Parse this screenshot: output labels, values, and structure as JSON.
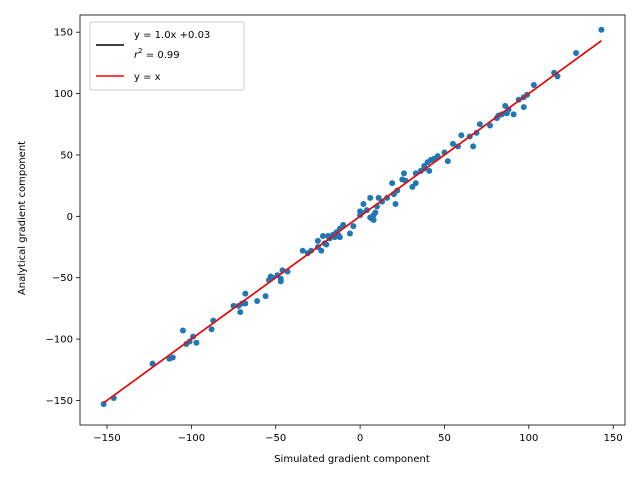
{
  "chart_data": {
    "type": "scatter",
    "title": "",
    "xlabel": "Simulated gradient component",
    "ylabel": "Analytical gradient component",
    "xlim": [
      -166,
      157
    ],
    "ylim": [
      -170,
      164
    ],
    "xticks": [
      -150,
      -100,
      -50,
      0,
      50,
      100,
      150
    ],
    "yticks": [
      -150,
      -100,
      -50,
      0,
      50,
      100,
      150
    ],
    "grid": false,
    "legend_placement": "top-left",
    "legend": [
      {
        "label_line1": "y = 1.0x +0.03",
        "label_line2_prefix": "r",
        "label_line2_sup": "2",
        "label_line2_suffix": " = 0.99",
        "color": "#000000"
      },
      {
        "label": "y = x",
        "color": "#ff0000"
      }
    ],
    "fit_line": {
      "slope": 1.0,
      "intercept": 0.03,
      "color": "#000000"
    },
    "identity_line": {
      "slope": 1.0,
      "intercept": 0.0,
      "color": "#ff0000"
    },
    "line_x_range": [
      -152,
      143
    ],
    "marker_color": "#1f77b4",
    "points": [
      [
        -152,
        -153
      ],
      [
        -146,
        -148
      ],
      [
        -123,
        -120
      ],
      [
        -113,
        -116
      ],
      [
        -111,
        -115
      ],
      [
        -105,
        -93
      ],
      [
        -103,
        -104
      ],
      [
        -101,
        -102
      ],
      [
        -99,
        -98
      ],
      [
        -97,
        -103
      ],
      [
        -88,
        -92
      ],
      [
        -87,
        -85
      ],
      [
        -75,
        -73
      ],
      [
        -72,
        -73
      ],
      [
        -71,
        -78
      ],
      [
        -70,
        -71
      ],
      [
        -68,
        -63
      ],
      [
        -68,
        -71
      ],
      [
        -61,
        -69
      ],
      [
        -56,
        -65
      ],
      [
        -54,
        -52
      ],
      [
        -53,
        -49
      ],
      [
        -52,
        -50
      ],
      [
        -49,
        -48
      ],
      [
        -47,
        -51
      ],
      [
        -47,
        -53
      ],
      [
        -46,
        -44
      ],
      [
        -43,
        -45
      ],
      [
        -34,
        -28
      ],
      [
        -31,
        -30
      ],
      [
        -29,
        -28
      ],
      [
        -25,
        -20
      ],
      [
        -25,
        -25
      ],
      [
        -23,
        -28
      ],
      [
        -22,
        -16
      ],
      [
        -21,
        -22
      ],
      [
        -20,
        -23
      ],
      [
        -19,
        -16
      ],
      [
        -18,
        -18
      ],
      [
        -16,
        -15
      ],
      [
        -15,
        -17
      ],
      [
        -14,
        -13
      ],
      [
        -13,
        -15
      ],
      [
        -12,
        -17
      ],
      [
        -12,
        -10
      ],
      [
        -10,
        -7
      ],
      [
        -6,
        -14
      ],
      [
        -4,
        -8
      ],
      [
        0,
        1
      ],
      [
        0,
        4
      ],
      [
        1,
        3
      ],
      [
        2,
        10
      ],
      [
        4,
        5
      ],
      [
        6,
        15
      ],
      [
        6,
        -1
      ],
      [
        7,
        -2
      ],
      [
        8,
        1
      ],
      [
        8,
        -3
      ],
      [
        9,
        3
      ],
      [
        10,
        8
      ],
      [
        11,
        15
      ],
      [
        13,
        12
      ],
      [
        16,
        15
      ],
      [
        19,
        27
      ],
      [
        20,
        18
      ],
      [
        21,
        10
      ],
      [
        22,
        21
      ],
      [
        25,
        30
      ],
      [
        26,
        35
      ],
      [
        27,
        29
      ],
      [
        31,
        24
      ],
      [
        33,
        35
      ],
      [
        33,
        27
      ],
      [
        36,
        37
      ],
      [
        38,
        41
      ],
      [
        38,
        39
      ],
      [
        40,
        44
      ],
      [
        41,
        37
      ],
      [
        42,
        46
      ],
      [
        44,
        47
      ],
      [
        46,
        49
      ],
      [
        50,
        52
      ],
      [
        52,
        45
      ],
      [
        55,
        59
      ],
      [
        58,
        57
      ],
      [
        60,
        66
      ],
      [
        65,
        65
      ],
      [
        67,
        57
      ],
      [
        69,
        68
      ],
      [
        71,
        75
      ],
      [
        77,
        74
      ],
      [
        81,
        80
      ],
      [
        82,
        82
      ],
      [
        84,
        83
      ],
      [
        86,
        90
      ],
      [
        87,
        84
      ],
      [
        88,
        87
      ],
      [
        91,
        83
      ],
      [
        94,
        95
      ],
      [
        97,
        97
      ],
      [
        97,
        89
      ],
      [
        99,
        99
      ],
      [
        103,
        107
      ],
      [
        115,
        117
      ],
      [
        117,
        114
      ],
      [
        128,
        133
      ],
      [
        143,
        152
      ]
    ]
  }
}
